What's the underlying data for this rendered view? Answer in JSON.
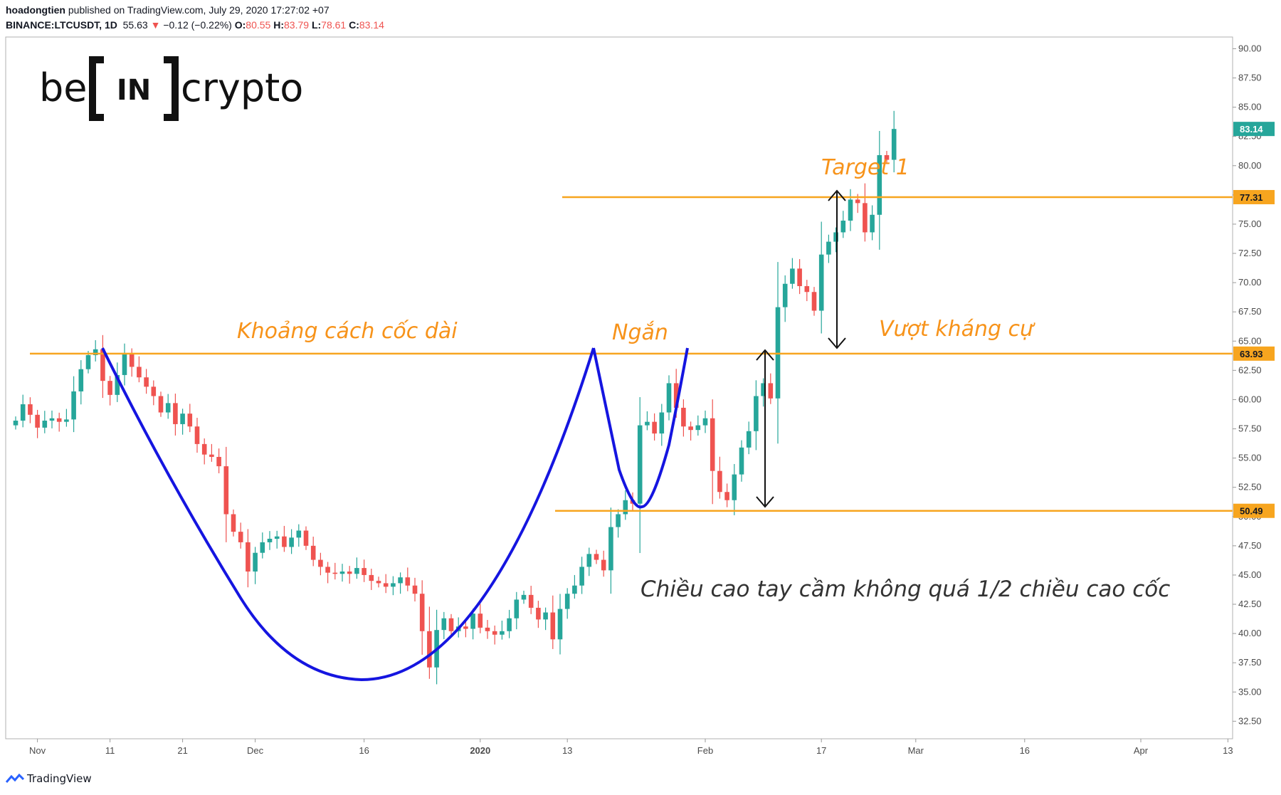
{
  "header": {
    "author": "hoadongtien",
    "published_text": "published on TradingView.com, July 29, 2020 17:27:02 +07",
    "symbol": "BINANCE:LTCUSDT, 1D",
    "last": "55.63",
    "arrow": "▼",
    "change": "−0.12 (−0.22%)",
    "o_label": "O:",
    "o_value": "80.55",
    "h_label": "H:",
    "h_value": "83.79",
    "l_label": "L:",
    "l_value": "78.61",
    "c_label": "C:",
    "c_value": "83.14"
  },
  "logo": {
    "left": "be",
    "mark": "IN",
    "right": "crypto"
  },
  "footer": {
    "brand": "TradingView"
  },
  "annotations": {
    "long_cup": "Khoảng cách cốc dài",
    "short": "Ngắn",
    "breakout": "Vượt kháng cự",
    "target": "Target 1",
    "handle_rule": "Chiều cao tay cầm không quá 1/2 chiều cao cốc"
  },
  "colors": {
    "up": "#26a69a",
    "down": "#ef5350",
    "level": "#f7a51f",
    "pattern": "#1515e0",
    "current_tag": "#26a69a",
    "text_orange": "#f7931a"
  },
  "chart_data": {
    "type": "candlestick",
    "symbol": "BINANCE:LTCUSDT",
    "interval": "1D",
    "ylim": [
      31,
      91
    ],
    "y_ticks": [
      32.5,
      35.0,
      37.5,
      40.0,
      42.5,
      45.0,
      47.5,
      50.0,
      52.5,
      55.0,
      57.5,
      60.0,
      62.5,
      65.0,
      67.5,
      70.0,
      72.5,
      75.0,
      77.5,
      80.0,
      82.5,
      85.0,
      87.5,
      90.0
    ],
    "x_start": "2019-10-29",
    "x_ticks": [
      {
        "label": "Nov",
        "date": "2019-11-01"
      },
      {
        "label": "11",
        "date": "2019-11-11"
      },
      {
        "label": "21",
        "date": "2019-11-21"
      },
      {
        "label": "Dec",
        "date": "2019-12-01"
      },
      {
        "label": "16",
        "date": "2019-12-16"
      },
      {
        "label": "2020",
        "date": "2020-01-01"
      },
      {
        "label": "13",
        "date": "2020-01-13"
      },
      {
        "label": "Feb",
        "date": "2020-02-01"
      },
      {
        "label": "17",
        "date": "2020-02-17"
      },
      {
        "label": "Mar",
        "date": "2020-03-01"
      },
      {
        "label": "16",
        "date": "2020-03-16"
      },
      {
        "label": "Apr",
        "date": "2020-04-01"
      },
      {
        "label": "13",
        "date": "2020-04-13"
      }
    ],
    "levels": [
      {
        "value": 77.31,
        "label": "77.31"
      },
      {
        "value": 63.93,
        "label": "63.93"
      },
      {
        "value": 50.49,
        "label": "50.49"
      }
    ],
    "current_price": {
      "value": 83.14,
      "label": "83.14"
    },
    "candles_close": [
      58.2,
      59.6,
      58.7,
      57.6,
      58.2,
      58.4,
      58.1,
      58.3,
      60.7,
      62.6,
      63.8,
      64.3,
      61.6,
      60.4,
      62.1,
      63.9,
      62.8,
      61.9,
      61.1,
      60.3,
      58.9,
      59.7,
      57.9,
      58.8,
      57.7,
      56.2,
      55.3,
      55.1,
      54.3,
      50.2,
      48.7,
      47.8,
      45.3,
      46.9,
      47.8,
      48.1,
      48.3,
      47.4,
      48.2,
      48.8,
      47.5,
      46.3,
      45.7,
      45.2,
      45.1,
      45.3,
      45.1,
      45.6,
      45.0,
      44.5,
      44.3,
      44.0,
      44.3,
      44.8,
      44.1,
      43.4,
      40.2,
      37.1,
      40.3,
      41.3,
      40.2,
      40.6,
      40.4,
      41.7,
      40.5,
      40.2,
      39.9,
      40.2,
      41.3,
      42.9,
      43.3,
      42.2,
      41.2,
      41.8,
      39.5,
      42.1,
      43.4,
      44.1,
      45.7,
      46.8,
      46.3,
      45.4,
      49.1,
      50.2,
      51.4,
      51.1,
      57.8,
      58.1,
      57.1,
      58.9,
      61.4,
      59.3,
      57.7,
      57.4,
      57.8,
      58.4,
      53.9,
      52.1,
      51.4,
      53.6,
      55.9,
      57.3,
      60.3,
      61.4,
      60.1,
      67.9,
      69.9,
      71.2,
      69.7,
      69.2,
      67.6,
      72.4,
      73.5,
      74.3,
      75.3,
      77.1,
      76.8,
      74.3,
      75.8,
      80.9,
      80.5,
      83.14
    ]
  }
}
